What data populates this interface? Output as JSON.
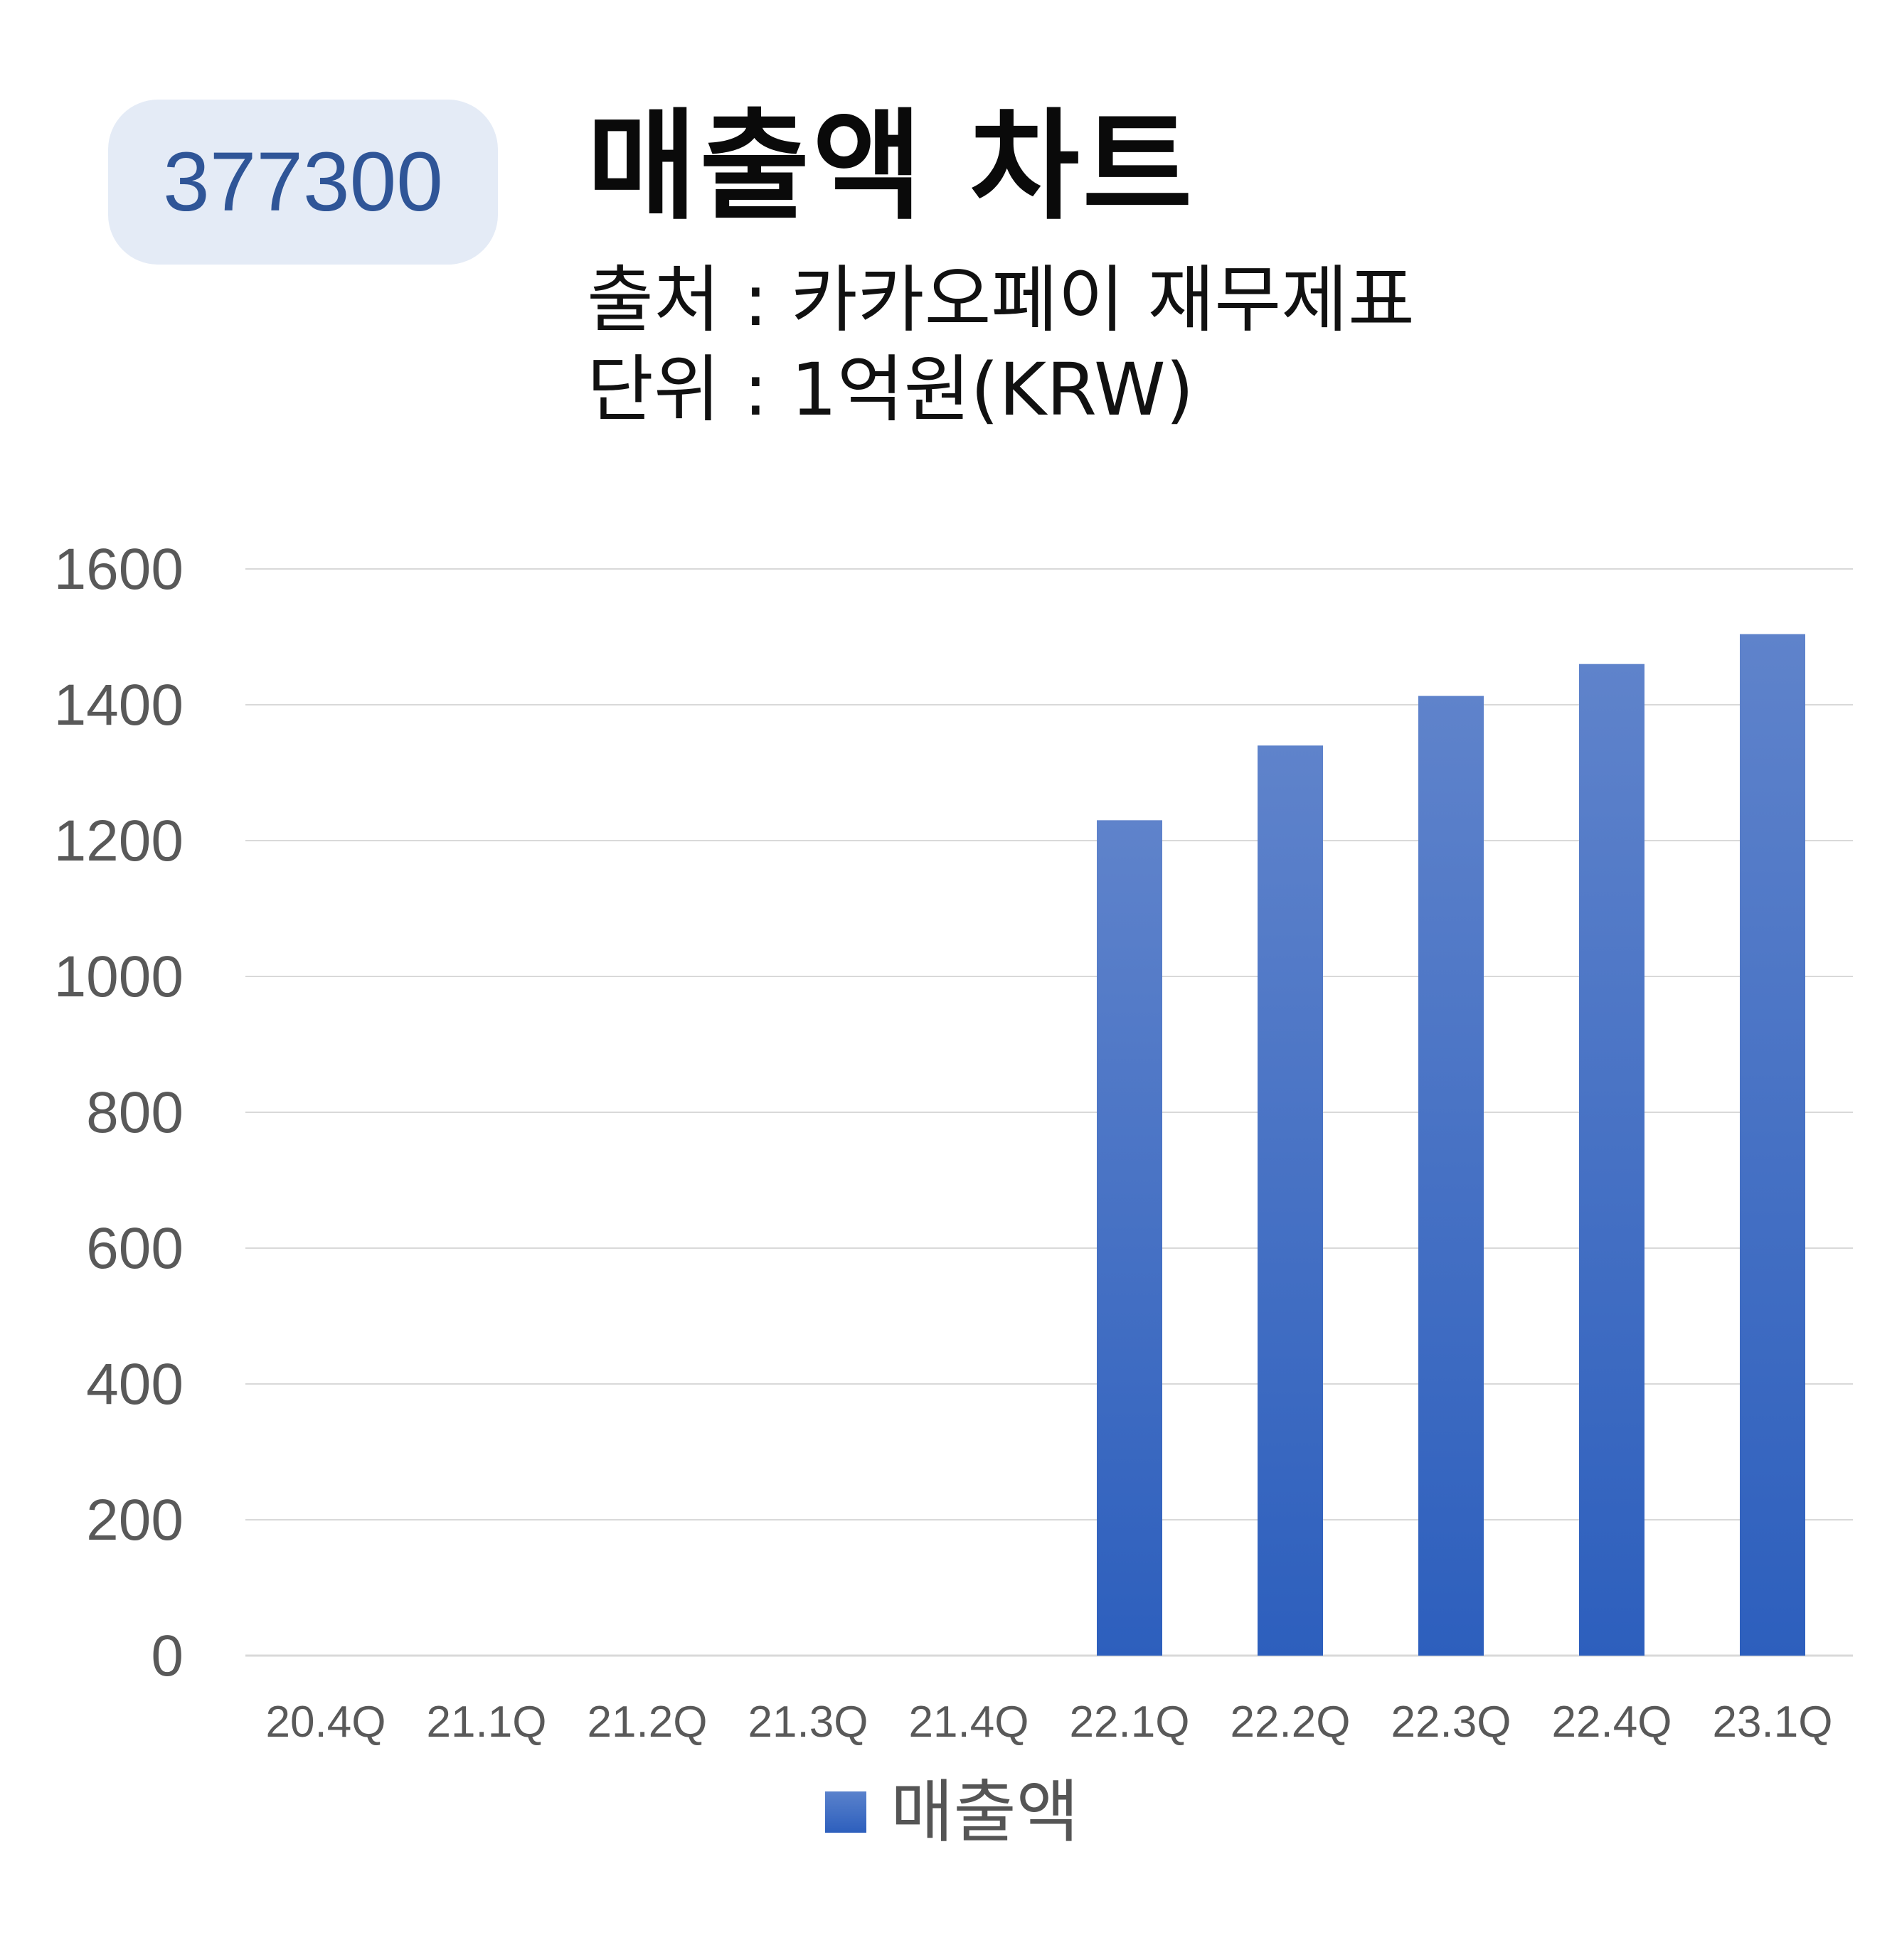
{
  "badge": {
    "code": "377300"
  },
  "header": {
    "title": "매출액 차트",
    "source": "출처 : 카카오페이 재무제표",
    "unit": "단위 : 1억원(KRW)"
  },
  "legend": {
    "label": "매출액",
    "color": "#4472C4"
  },
  "chart_data": {
    "type": "bar",
    "categories": [
      "20.4Q",
      "21.1Q",
      "21.2Q",
      "21.3Q",
      "21.4Q",
      "22.1Q",
      "22.2Q",
      "22.3Q",
      "22.4Q",
      "23.1Q"
    ],
    "series": [
      {
        "name": "매출액",
        "values": [
          0,
          0,
          0,
          0,
          0,
          1230,
          1340,
          1413,
          1460,
          1504
        ]
      }
    ],
    "ylim": [
      0,
      1600
    ],
    "yticks": [
      0,
      200,
      400,
      600,
      800,
      1000,
      1200,
      1400,
      1600
    ],
    "grid": true,
    "legend_position": "bottom",
    "colors": {
      "bar_top": "#5f83cb",
      "bar_bottom": "#2d5fbd",
      "grid": "#d9d9d9",
      "tick_text": "#595959"
    }
  }
}
